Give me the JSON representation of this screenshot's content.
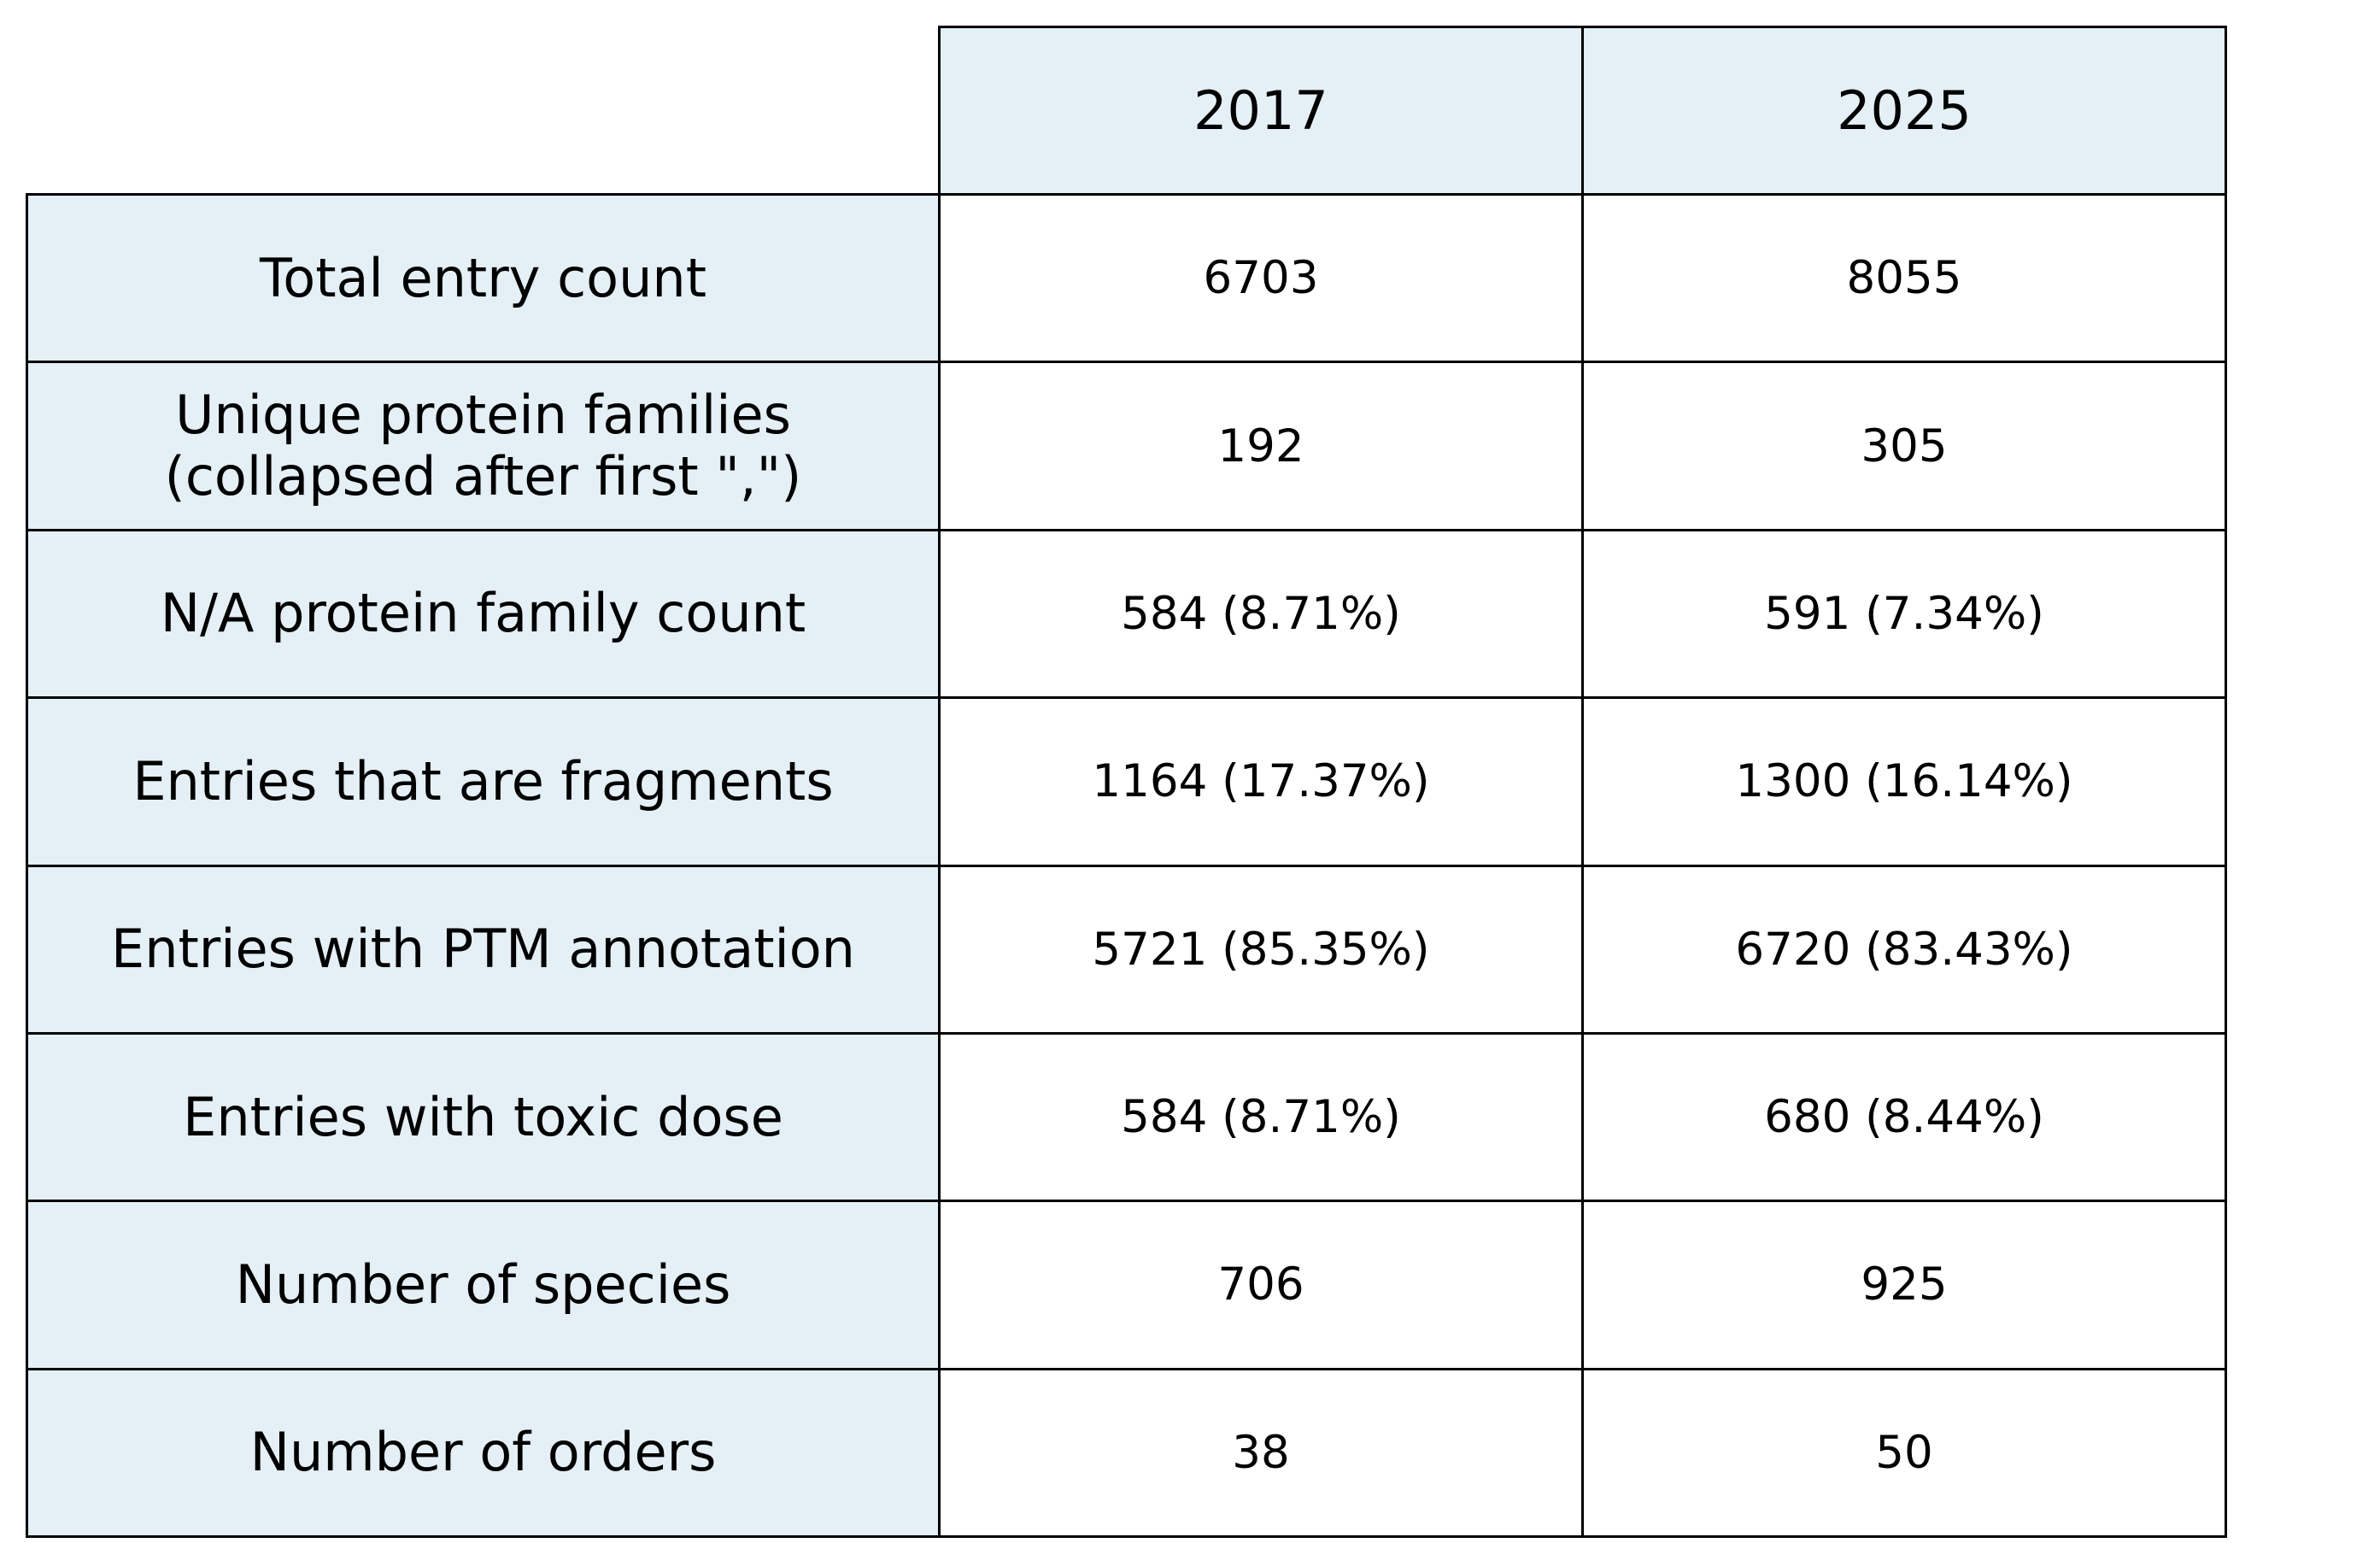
{
  "chart_data": {
    "type": "table",
    "columns": [
      "2017",
      "2025"
    ],
    "rows": [
      {
        "label": "Total entry count",
        "values": [
          "6703",
          "8055"
        ]
      },
      {
        "label": "Unique protein families\n(collapsed after first \",\")",
        "values": [
          "192",
          "305"
        ]
      },
      {
        "label": "N/A protein family count",
        "values": [
          "584 (8.71%)",
          "591 (7.34%)"
        ]
      },
      {
        "label": "Entries that are fragments",
        "values": [
          "1164 (17.37%)",
          "1300 (16.14%)"
        ]
      },
      {
        "label": "Entries with PTM annotation",
        "values": [
          "5721 (85.35%)",
          "6720 (83.43%)"
        ]
      },
      {
        "label": "Entries with toxic dose",
        "values": [
          "584 (8.71%)",
          "680 (8.44%)"
        ]
      },
      {
        "label": "Number of species",
        "values": [
          "706",
          "925"
        ]
      },
      {
        "label": "Number of orders",
        "values": [
          "38",
          "50"
        ]
      }
    ],
    "colors": {
      "header_fill": "#e4eff6",
      "cell_fill": "#ffffff",
      "border": "#000000"
    }
  }
}
